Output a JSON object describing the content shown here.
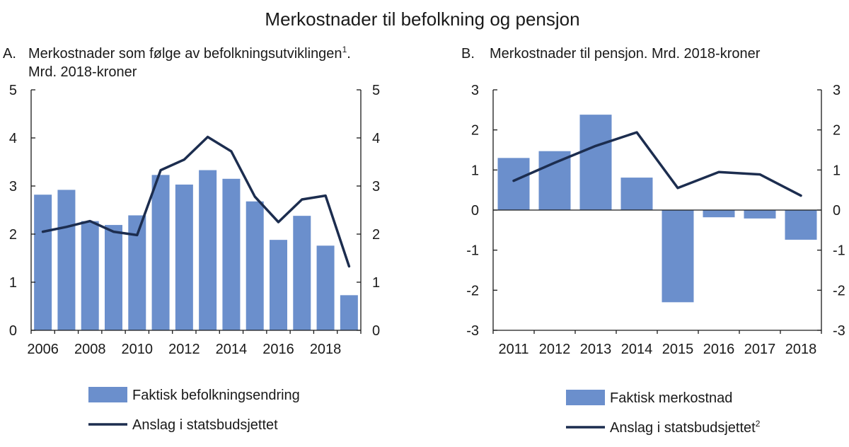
{
  "title": "Merkostnader til befolkning og pensjon",
  "colors": {
    "bar": "#6b8fcc",
    "line": "#1c2d4f",
    "axis": "#1a1a1a"
  },
  "chart_data": [
    {
      "panel_label": "A.",
      "title_line1": "Merkostnader som følge av befolkningsutviklingen",
      "title_sup": "1",
      "title_after_sup": ".",
      "title_line2": "Mrd. 2018-kroner",
      "type": "bar+line",
      "categories": [
        2006,
        2007,
        2008,
        2009,
        2010,
        2011,
        2012,
        2013,
        2014,
        2015,
        2016,
        2017,
        2018,
        2019
      ],
      "x_tick_labels": [
        "2006",
        "2008",
        "2010",
        "2012",
        "2014",
        "2016",
        "2018"
      ],
      "ylim": [
        0,
        5
      ],
      "y_ticks": [
        0,
        1,
        2,
        3,
        4,
        5
      ],
      "y_ticks_both_sides": true,
      "grid": false,
      "series": [
        {
          "name": "Faktisk befolkningsendring",
          "kind": "bar",
          "values": [
            2.82,
            2.92,
            2.27,
            2.19,
            2.39,
            3.23,
            3.03,
            3.33,
            3.15,
            2.68,
            1.88,
            2.38,
            1.76,
            0.73
          ]
        },
        {
          "name": "Anslag i statsbudsjettet",
          "kind": "line",
          "values": [
            2.05,
            2.15,
            2.27,
            2.05,
            1.98,
            3.33,
            3.55,
            4.02,
            3.72,
            2.78,
            2.25,
            2.72,
            2.8,
            1.33
          ]
        }
      ],
      "legend": {
        "position": "bottom",
        "items": [
          {
            "label": "Faktisk befolkningsendring",
            "sup": ""
          },
          {
            "label": "Anslag i statsbudsjettet",
            "sup": ""
          }
        ]
      }
    },
    {
      "panel_label": "B.",
      "title_line1": "Merkostnader til pensjon. Mrd. 2018-kroner",
      "title_sup": "",
      "title_after_sup": "",
      "title_line2": "",
      "type": "bar+line",
      "categories": [
        2011,
        2012,
        2013,
        2014,
        2015,
        2016,
        2017,
        2018
      ],
      "x_tick_labels": [
        "2011",
        "2012",
        "2013",
        "2014",
        "2015",
        "2016",
        "2017",
        "2018"
      ],
      "ylim": [
        -3,
        3
      ],
      "y_ticks": [
        -3,
        -2,
        -1,
        0,
        1,
        2,
        3
      ],
      "y_ticks_both_sides": true,
      "grid": false,
      "series": [
        {
          "name": "Faktisk merkostnad",
          "kind": "bar",
          "values": [
            1.3,
            1.47,
            2.38,
            0.81,
            -2.3,
            -0.18,
            -0.21,
            -0.74
          ]
        },
        {
          "name": "Anslag i statsbudsjettet",
          "kind": "line",
          "values": [
            0.73,
            1.18,
            1.6,
            1.94,
            0.55,
            0.95,
            0.89,
            0.36
          ]
        }
      ],
      "legend": {
        "position": "bottom",
        "items": [
          {
            "label": "Faktisk merkostnad",
            "sup": ""
          },
          {
            "label": "Anslag i statsbudsjettet",
            "sup": "2"
          }
        ]
      }
    }
  ]
}
